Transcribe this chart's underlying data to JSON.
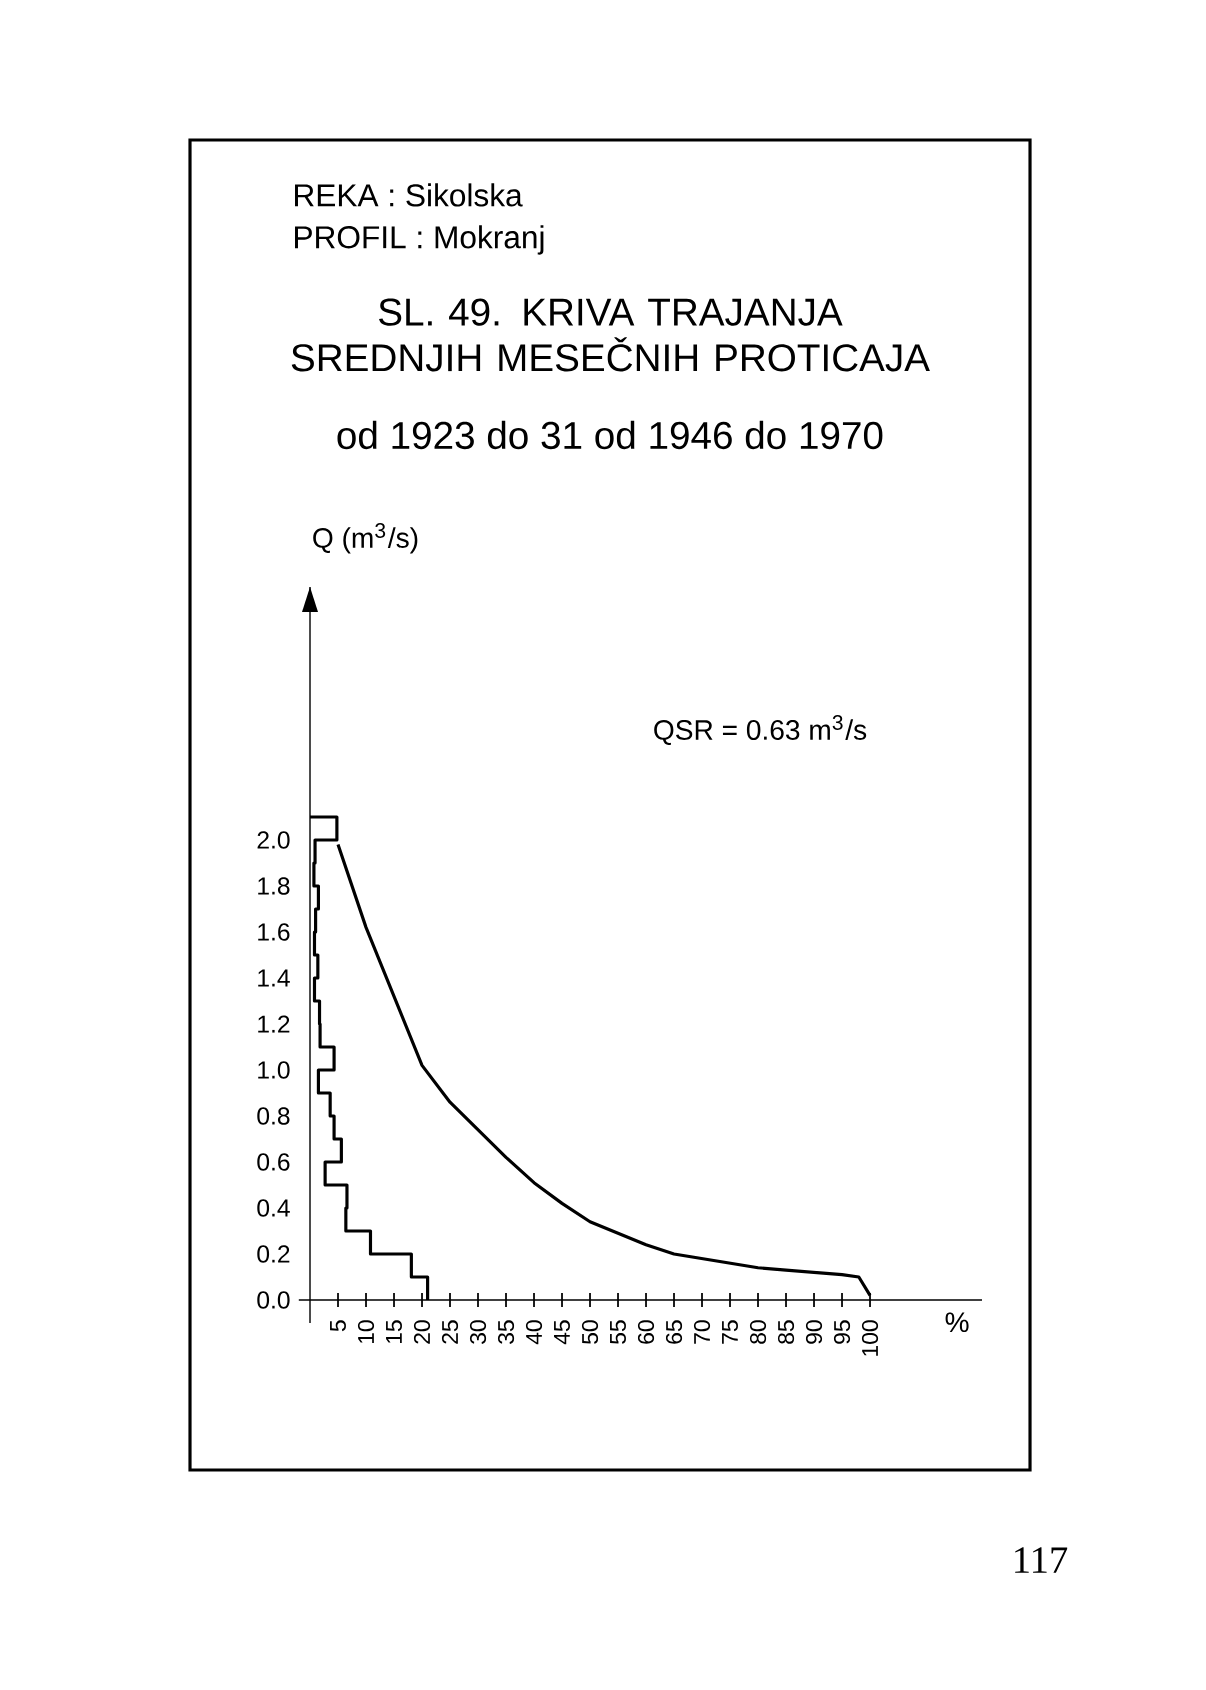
{
  "chart_data": {
    "type": "line",
    "title": "SL. 49. KRIVA TRAJANJA SREDNJIH MESEČNIH PROTICAJA",
    "subtitle": "od 1923 do 31 od 1946 do 1970",
    "xlabel": "%",
    "ylabel": "Q (m$^{3}$/s)",
    "annotations": [
      "REKA : Sikolska",
      "PROFIL : Mokranj",
      "QSR = 0.63 m$^{3}$/s",
      "117"
    ],
    "xlim": [
      -2,
      120
    ],
    "ylim": [
      -0.1,
      3.1
    ],
    "xticks": [
      5,
      10,
      15,
      20,
      25,
      30,
      35,
      40,
      45,
      50,
      55,
      60,
      65,
      70,
      75,
      80,
      85,
      90,
      95,
      100
    ],
    "yticks": [
      {
        "value": 0,
        "label": "0.0"
      },
      {
        "value": 0.2,
        "label": "0.2"
      },
      {
        "value": 0.4,
        "label": "0.4"
      },
      {
        "value": 0.6,
        "label": "0.6"
      },
      {
        "value": 0.8,
        "label": "0.8"
      },
      {
        "value": 1.0,
        "label": "1.0"
      },
      {
        "value": 1.2,
        "label": "1.2"
      },
      {
        "value": 1.4,
        "label": "1.4"
      },
      {
        "value": 1.6,
        "label": "1.6"
      },
      {
        "value": 1.8,
        "label": "1.8"
      },
      {
        "value": 2.0,
        "label": "2.0"
      }
    ],
    "series": [
      {
        "type": "line",
        "color": "#000000",
        "x": [
          21.0,
          21.0,
          18.1,
          18.1,
          10.8,
          10.8,
          6.4,
          6.4,
          6.6,
          6.6,
          2.7,
          2.7,
          5.6,
          5.6,
          4.3,
          4.3,
          3.6,
          3.6,
          1.5,
          1.5,
          4.3,
          4.3,
          1.8,
          1.8,
          1.7,
          1.7,
          0.8,
          0.8,
          1.4,
          1.4,
          0.8,
          0.8,
          1.0,
          1.0,
          1.5,
          1.5,
          0.7,
          0.7,
          0.9,
          0.9,
          4.8,
          4.8,
          0
        ],
        "values": [
          0,
          0.1,
          0.1,
          0.2,
          0.2,
          0.3,
          0.3,
          0.4,
          0.4,
          0.5,
          0.5,
          0.6,
          0.6,
          0.7,
          0.7,
          0.8,
          0.8,
          0.9,
          0.9,
          1.0,
          1.0,
          1.1,
          1.1,
          1.2,
          1.2,
          1.3,
          1.3,
          1.4,
          1.4,
          1.5,
          1.5,
          1.6,
          1.6,
          1.7,
          1.7,
          1.8,
          1.8,
          1.9,
          1.9,
          2.0,
          2.0,
          2.1,
          2.1
        ]
      },
      {
        "type": "line",
        "color": "#000000",
        "x": [
          5,
          10,
          15,
          20,
          25,
          30,
          35,
          40,
          45,
          50,
          55,
          60,
          65,
          70,
          75,
          80,
          85,
          90,
          95,
          98,
          100
        ],
        "values": [
          1.98,
          1.62,
          1.32,
          1.02,
          0.86,
          0.74,
          0.62,
          0.51,
          0.42,
          0.34,
          0.29,
          0.24,
          0.2,
          0.18,
          0.16,
          0.14,
          0.13,
          0.12,
          0.11,
          0.1,
          0.02
        ]
      }
    ]
  }
}
